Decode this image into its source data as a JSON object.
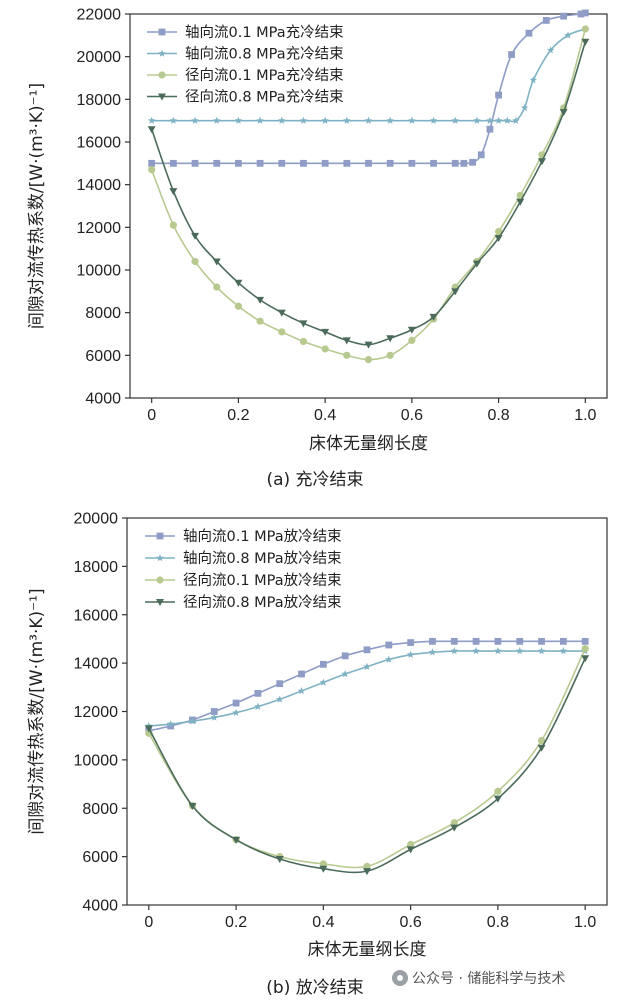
{
  "watermark": "公众号 · 储能科学与技术",
  "chart_data": [
    {
      "type": "line",
      "caption": "(a) 充冷结束",
      "xlabel": "床体无量纲长度",
      "ylabel": "间隙对流传热系数/[W·(m³·K)⁻¹]",
      "xlim": [
        -0.05,
        1.05
      ],
      "ylim": [
        4000,
        22000
      ],
      "xticks": [
        0,
        0.2,
        0.4,
        0.6,
        0.8,
        1.0
      ],
      "xtick_labels": [
        "0",
        "0.2",
        "0.4",
        "0.6",
        "0.8",
        "1.0"
      ],
      "yticks": [
        4000,
        6000,
        8000,
        10000,
        12000,
        14000,
        16000,
        18000,
        20000,
        22000
      ],
      "ytick_labels": [
        "4000",
        "6000",
        "8000",
        "10000",
        "12000",
        "14000",
        "16000",
        "18000",
        "20000",
        "22000"
      ],
      "legend_position": "top-left",
      "series": [
        {
          "name": "轴向流0.1 MPa充冷结束",
          "color": "#8e9cc6",
          "marker": "square",
          "x": [
            0,
            0.05,
            0.1,
            0.15,
            0.2,
            0.25,
            0.3,
            0.35,
            0.4,
            0.45,
            0.5,
            0.55,
            0.6,
            0.65,
            0.7,
            0.72,
            0.74,
            0.76,
            0.78,
            0.8,
            0.83,
            0.87,
            0.91,
            0.95,
            0.99,
            1.0
          ],
          "y": [
            15000,
            15000,
            15000,
            15000,
            15000,
            15000,
            15000,
            15000,
            15000,
            15000,
            15000,
            15000,
            15000,
            15000,
            15000,
            15000,
            15050,
            15400,
            16600,
            18200,
            20100,
            21100,
            21700,
            21900,
            22000,
            22050
          ]
        },
        {
          "name": "轴向流0.8 MPa充冷结束",
          "color": "#7fb2c4",
          "marker": "star",
          "x": [
            0,
            0.05,
            0.1,
            0.15,
            0.2,
            0.25,
            0.3,
            0.35,
            0.4,
            0.45,
            0.5,
            0.55,
            0.6,
            0.65,
            0.7,
            0.75,
            0.78,
            0.8,
            0.82,
            0.84,
            0.86,
            0.88,
            0.92,
            0.96,
            1.0
          ],
          "y": [
            17000,
            17000,
            17000,
            17000,
            17000,
            17000,
            17000,
            17000,
            17000,
            17000,
            17000,
            17000,
            17000,
            17000,
            17000,
            17000,
            17000,
            17000,
            17000,
            17000,
            17600,
            18900,
            20300,
            21000,
            21300
          ]
        },
        {
          "name": "径向流0.1 MPa充冷结束",
          "color": "#b8c98f",
          "marker": "circle",
          "x": [
            0,
            0.05,
            0.1,
            0.15,
            0.2,
            0.25,
            0.3,
            0.35,
            0.4,
            0.45,
            0.5,
            0.55,
            0.6,
            0.65,
            0.7,
            0.75,
            0.8,
            0.85,
            0.9,
            0.95,
            1.0
          ],
          "y": [
            14700,
            12100,
            10400,
            9200,
            8300,
            7600,
            7100,
            6650,
            6300,
            6000,
            5800,
            6000,
            6700,
            7700,
            9200,
            10400,
            11800,
            13500,
            15400,
            17600,
            21300
          ]
        },
        {
          "name": "径向流0.8 MPa充冷结束",
          "color": "#4b6b5a",
          "marker": "triangle-down",
          "x": [
            0,
            0.05,
            0.1,
            0.15,
            0.2,
            0.25,
            0.3,
            0.35,
            0.4,
            0.45,
            0.5,
            0.55,
            0.6,
            0.65,
            0.7,
            0.75,
            0.8,
            0.85,
            0.9,
            0.95,
            1.0
          ],
          "y": [
            16600,
            13700,
            11600,
            10400,
            9400,
            8600,
            8000,
            7500,
            7100,
            6700,
            6500,
            6800,
            7200,
            7800,
            9000,
            10300,
            11500,
            13200,
            15100,
            17400,
            20700
          ]
        }
      ]
    },
    {
      "type": "line",
      "caption": "(b) 放冷结束",
      "xlabel": "床体无量纲长度",
      "ylabel": "间隙对流传热系数/[W·(m³·K)⁻¹]",
      "xlim": [
        -0.05,
        1.05
      ],
      "ylim": [
        4000,
        20000
      ],
      "xticks": [
        0,
        0.2,
        0.4,
        0.6,
        0.8,
        1.0
      ],
      "xtick_labels": [
        "0",
        "0.2",
        "0.4",
        "0.6",
        "0.8",
        "1.0"
      ],
      "yticks": [
        4000,
        6000,
        8000,
        10000,
        12000,
        14000,
        16000,
        18000,
        20000
      ],
      "ytick_labels": [
        "4000",
        "6000",
        "8000",
        "10000",
        "12000",
        "14000",
        "16000",
        "18000",
        "20000"
      ],
      "legend_position": "top-left",
      "series": [
        {
          "name": "轴向流0.1 MPa放冷结束",
          "color": "#8e9cc6",
          "marker": "square",
          "x": [
            0,
            0.05,
            0.1,
            0.15,
            0.2,
            0.25,
            0.3,
            0.35,
            0.4,
            0.45,
            0.5,
            0.55,
            0.6,
            0.65,
            0.7,
            0.75,
            0.8,
            0.85,
            0.9,
            0.95,
            1.0
          ],
          "y": [
            11200,
            11400,
            11650,
            12000,
            12350,
            12750,
            13150,
            13550,
            13950,
            14300,
            14550,
            14750,
            14850,
            14900,
            14900,
            14900,
            14900,
            14900,
            14900,
            14900,
            14900
          ]
        },
        {
          "name": "轴向流0.8 MPa放冷结束",
          "color": "#7fb2c4",
          "marker": "star",
          "x": [
            0,
            0.05,
            0.1,
            0.15,
            0.2,
            0.25,
            0.3,
            0.35,
            0.4,
            0.45,
            0.5,
            0.55,
            0.6,
            0.65,
            0.7,
            0.75,
            0.8,
            0.85,
            0.9,
            0.95,
            1.0
          ],
          "y": [
            11400,
            11480,
            11600,
            11750,
            11950,
            12200,
            12500,
            12850,
            13200,
            13550,
            13850,
            14150,
            14350,
            14450,
            14500,
            14500,
            14500,
            14500,
            14500,
            14500,
            14500
          ]
        },
        {
          "name": "径向流0.1 MPa放冷结束",
          "color": "#b8c98f",
          "marker": "circle",
          "x": [
            0,
            0.1,
            0.2,
            0.3,
            0.4,
            0.5,
            0.6,
            0.7,
            0.8,
            0.9,
            1.0
          ],
          "y": [
            11100,
            8100,
            6700,
            6000,
            5700,
            5600,
            6500,
            7400,
            8700,
            10800,
            14600
          ]
        },
        {
          "name": "径向流0.8 MPa放冷结束",
          "color": "#4b6b5a",
          "marker": "triangle-down",
          "x": [
            0,
            0.1,
            0.2,
            0.3,
            0.4,
            0.5,
            0.6,
            0.7,
            0.8,
            0.9,
            1.0
          ],
          "y": [
            11300,
            8100,
            6700,
            5900,
            5500,
            5400,
            6300,
            7200,
            8400,
            10500,
            14200
          ]
        }
      ]
    }
  ]
}
